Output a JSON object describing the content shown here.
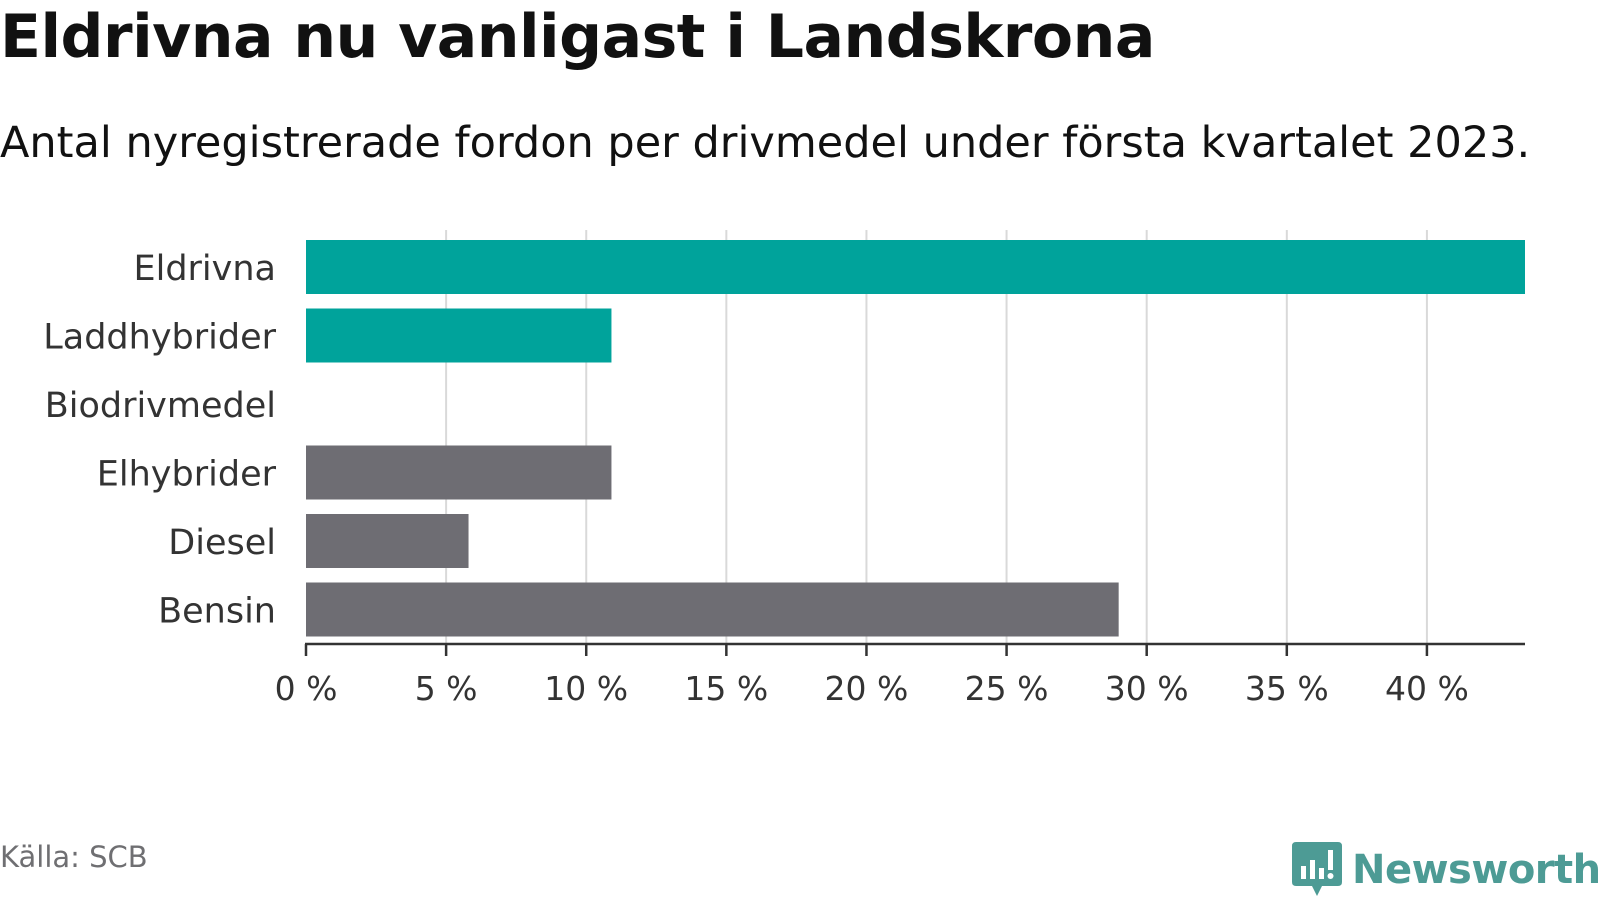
{
  "title": "Eldrivna nu vanligast i Landskrona",
  "subtitle": "Antal nyregistrerade fordon per drivmedel under första kvartalet 2023.",
  "source": "Källa: SCB",
  "brand": "Newsworthy",
  "colors": {
    "highlight": "#00a39b",
    "default": "#6e6d73",
    "grid": "#d9d9d9",
    "axis": "#333333",
    "brand": "#4d9b95"
  },
  "chart_data": {
    "type": "bar",
    "orientation": "horizontal",
    "title": "Eldrivna nu vanligast i Landskrona",
    "subtitle": "Antal nyregistrerade fordon per drivmedel under första kvartalet 2023.",
    "categories": [
      "Eldrivna",
      "Laddhybrider",
      "Biodrivmedel",
      "Elhybrider",
      "Diesel",
      "Bensin"
    ],
    "values": [
      43.5,
      10.9,
      0,
      10.9,
      5.8,
      29.0
    ],
    "highlight": [
      true,
      true,
      false,
      false,
      false,
      false
    ],
    "xlim": [
      0,
      43.5
    ],
    "xticks": [
      0,
      5,
      10,
      15,
      20,
      25,
      30,
      35,
      40
    ],
    "tick_labels": [
      "0 %",
      "5 %",
      "10 %",
      "15 %",
      "20 %",
      "25 %",
      "30 %",
      "35 %",
      "40 %"
    ],
    "grid": true
  }
}
